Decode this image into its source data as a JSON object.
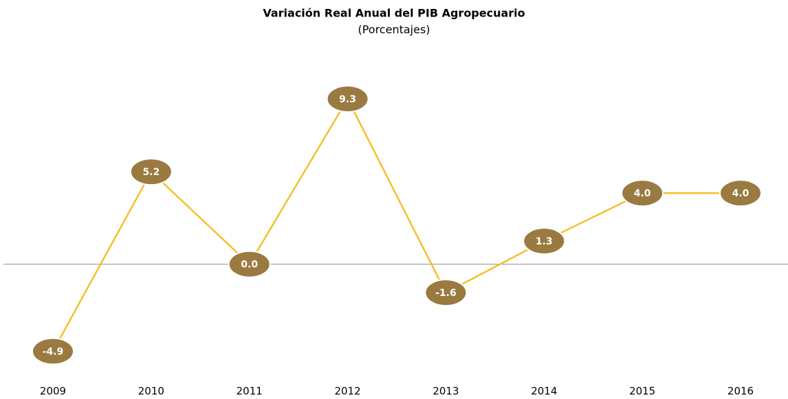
{
  "chart_data": {
    "type": "line",
    "title": "Variación Real Anual del PIB Agropecuario",
    "subtitle": "(Porcentajes)",
    "categories": [
      "2009",
      "2010",
      "2011",
      "2012",
      "2013",
      "2014",
      "2015",
      "2016"
    ],
    "values": [
      -4.9,
      5.2,
      0,
      9.3,
      -1.6,
      1.3,
      4,
      4
    ],
    "value_labels": [
      "-4.9",
      "5.2",
      "0.0",
      "9.3",
      "-1.6",
      "1.3",
      "4.0",
      "4.0"
    ],
    "color": "#f5c02a",
    "marker_color": "#9a7a40",
    "ylim": [
      -6,
      11
    ]
  }
}
